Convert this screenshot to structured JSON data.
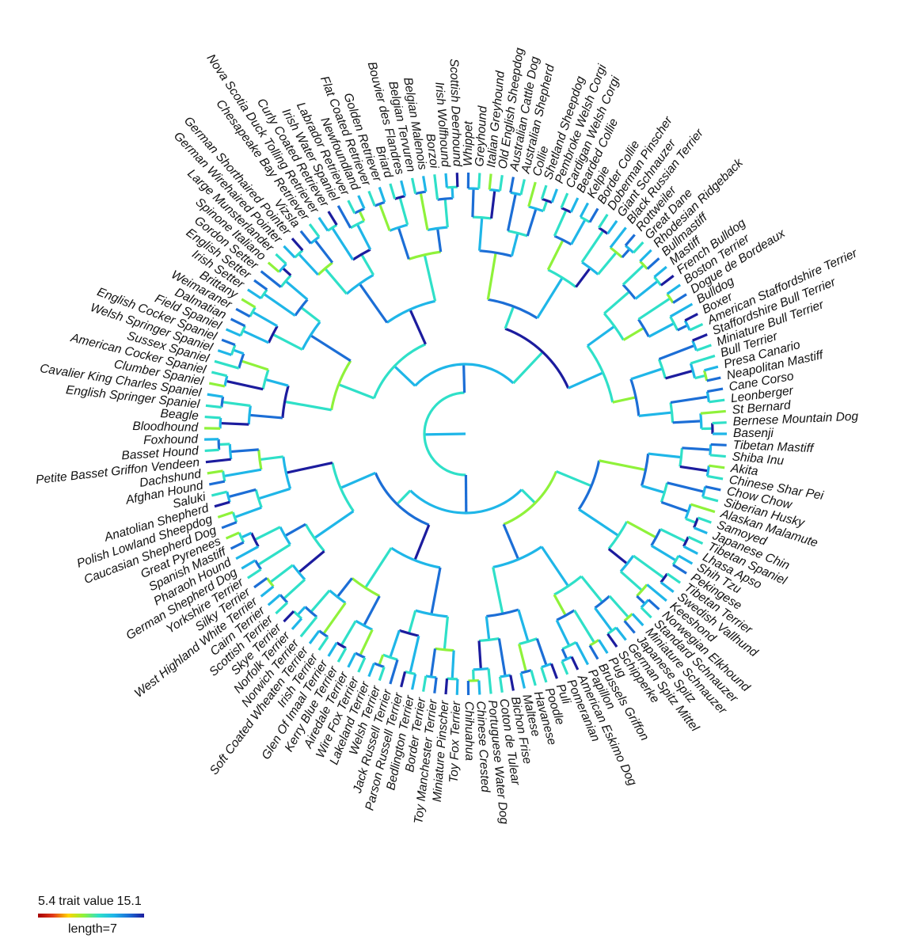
{
  "tips": [
    "Basenji",
    "Bernese Mountain Dog",
    "St Bernard",
    "Leonberger",
    "Cane Corso",
    "Neapolitan Mastiff",
    "Presa Canario",
    "Bull Terrier",
    "Miniature Bull Terrier",
    "Staffordshire Bull Terrier",
    "American Staffordshire Terrier",
    "Boxer",
    "Bulldog",
    "Dogue de Bordeaux",
    "Boston Terrier",
    "French Bulldog",
    "Mastiff",
    "Bullmastiff",
    "Rhodesian Ridgeback",
    "Great Dane",
    "Rottweiler",
    "Black Russian Terrier",
    "Giant Schnauzer",
    "Doberman Pinscher",
    "Border Collie",
    "Kelpie",
    "Bearded Collie",
    "Cardigan Welsh Corgi",
    "Pembroke Welsh Corgi",
    "Shetland Sheepdog",
    "Collie",
    "Australian Shepherd",
    "Australian Cattle Dog",
    "Old English Sheepdog",
    "Italian Greyhound",
    "Greyhound",
    "Whippet",
    "Scottish Deerhound",
    "Irish Wolfhound",
    "Borzoi",
    "Belgian Malenois",
    "Belgian Tervuren",
    "Bouvier des Flandres",
    "Briard",
    "Golden Retriever",
    "Flat Coated Retriever",
    "Newfoundland",
    "Labrador Retriever",
    "Irish Water Spaniel",
    "Curly Coated Retriever",
    "Nova Scotia Duck Tolling Retriever",
    "Chesapeake Bay Retriever",
    "Vizsla",
    "German Shorthaired Pointer",
    "German Wirehaired Pointer",
    "Large Munsterlander",
    "Spinone Italiano",
    "Gordon Setter",
    "English Setter",
    "Irish Setter",
    "Brittany",
    "Weimaraner",
    "Dalmatian",
    "Field Spaniel",
    "English Cocker Spaniel",
    "Welsh Springer Spaniel",
    "Sussex Spaniel",
    "American Cocker Spaniel",
    "Clumber Spaniel",
    "Cavalier King Charles Spaniel",
    "English Springer Spaniel",
    "Beagle",
    "Bloodhound",
    "Foxhound",
    "Basset Hound",
    "Petite Basset Griffon Vendeen",
    "Dachshund",
    "Afghan Hound",
    "Saluki",
    "Anatolian Shepherd",
    "Polish Lowland Sheepdog",
    "Caucasian Shepherd Dog",
    "Great Pyrenees",
    "Spanish Mastiff",
    "Pharaoh Hound",
    "German Shepherd Dog",
    "Yorkshire Terrier",
    "Silky Terrier",
    "West Highland White Terrier",
    "Cairn Terrier",
    "Scottish Terrier",
    "Skye Terrier",
    "Norfolk Terrier",
    "Norwich Terrier",
    "Soft Coated Wheaten Terrier",
    "Irish Terrier",
    "Glen Of Imaal Terrier",
    "Kerry Blue Terrier",
    "Airedale Terrier",
    "Wire Fox Terrier",
    "Lakeland Terrier",
    "Welsh Terrier",
    "Jack Russell Terrier",
    "Parson Russell Terrier",
    "Bedlington Terrier",
    "Border Terrier",
    "Toy Manchester Terrier",
    "Miniature Pinscher",
    "Toy Fox Terrier",
    "Chihuahua",
    "Chinese Crested",
    "Portuguese Water Dog",
    "Coton de Tulear",
    "Bichon Frise",
    "Maltese",
    "Havanese",
    "Poodle",
    "Puli",
    "Pomeranian",
    "American Eskimo Dog",
    "Papillon",
    "Brussels Griffon",
    "Pug",
    "Schipperke",
    "German Spitz Mittel",
    "Japanese Spitz",
    "Miniature Schnauzer",
    "Standard Schnauzer",
    "Norwegian Elkhound",
    "Keeshond",
    "Swedish Vallhund",
    "Tibetan Terrier",
    "Pekingese",
    "Shih Tzu",
    "Lhasa Apso",
    "Tibetan Spaniel",
    "Japanese Chin",
    "Samoyed",
    "Alaskan Malamute",
    "Siberian Husky",
    "Chow Chow",
    "Chinese Shar Pei",
    "Akita",
    "Shiba Inu",
    "Tibetan Mastiff"
  ],
  "legend": {
    "min_label": "5.4",
    "title": "trait value",
    "max_label": "15.1",
    "scale_label": "length=7",
    "colormap": [
      "#a50000",
      "#e23b1a",
      "#ffd400",
      "#8ff23a",
      "#2fe0c8",
      "#1fb6e8",
      "#1c6ed6",
      "#1c1c9e"
    ]
  }
}
